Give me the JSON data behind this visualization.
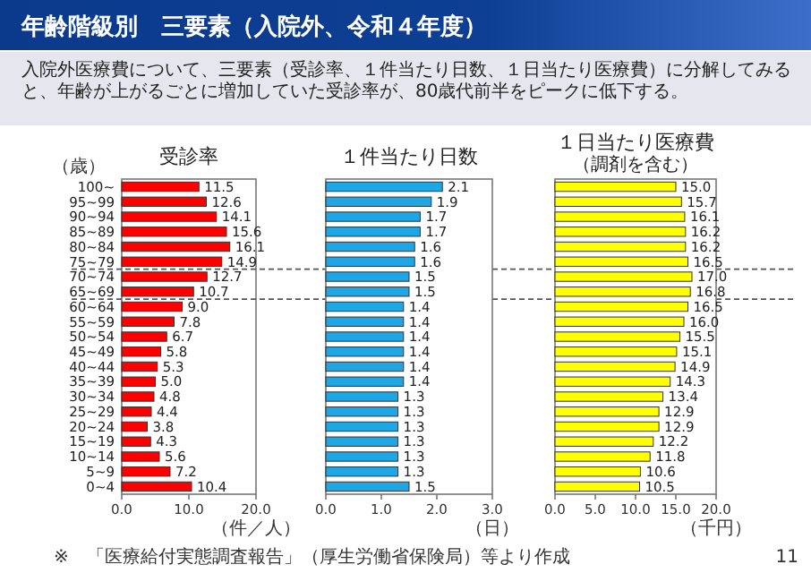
{
  "chart_data": [
    {
      "type": "other",
      "title": "年齢階級別　三要素（入院外、令和４年度）",
      "subtitle": "入院外医療費について、三要素（受診率、１件当たり日数、１日当たり医療費）に分解してみると、年齢が上がるごとに増加していた受診率が、80歳代前半をピークに低下する。",
      "annotations": [
        "※　「医療給付実態調査報告」（厚生労働省保険局）等より作成",
        "11"
      ]
    },
    {
      "type": "bar",
      "orientation": "horizontal",
      "title": "受診率",
      "ylabel": "（歳）",
      "xlabel": "（件／人）",
      "categories": [
        "100~",
        "95~99",
        "90~94",
        "85~89",
        "80~84",
        "75~79",
        "70~74",
        "65~69",
        "60~64",
        "55~59",
        "50~54",
        "45~49",
        "40~44",
        "35~39",
        "30~34",
        "25~29",
        "20~24",
        "15~19",
        "10~14",
        "5~9",
        "0~4"
      ],
      "values": [
        11.5,
        12.6,
        14.1,
        15.6,
        16.1,
        14.9,
        12.7,
        10.7,
        9.0,
        7.8,
        6.7,
        5.8,
        5.3,
        5.0,
        4.8,
        4.4,
        3.8,
        4.3,
        5.6,
        7.2,
        10.4
      ],
      "color": "#ff0000",
      "value_labels": [
        "11.5",
        "12.6",
        "14.1",
        "15.6",
        "16.1",
        "14.9",
        "12.7",
        "10.7",
        "9.0",
        "7.8",
        "6.7",
        "5.8",
        "5.3",
        "5.0",
        "4.8",
        "4.4",
        "3.8",
        "4.3",
        "5.6",
        "7.2",
        "10.4"
      ],
      "xlim": [
        0,
        20
      ],
      "xticks": [
        {
          "value": 0,
          "label": "0.0"
        },
        {
          "value": 10,
          "label": "10.0"
        },
        {
          "value": 20,
          "label": "20.0"
        }
      ],
      "ref_lines": [
        {
          "axis": "y",
          "value": "75~79",
          "line_style": "dashed"
        },
        {
          "axis": "y",
          "value": "65~69",
          "line_style": "dashed"
        }
      ]
    },
    {
      "type": "bar",
      "orientation": "horizontal",
      "title": "１件当たり日数",
      "xlabel": "（日）",
      "categories": [
        null,
        null,
        null,
        null,
        null,
        null,
        null,
        null,
        null,
        null,
        null,
        null,
        null,
        null,
        null,
        null,
        null,
        null,
        null,
        null,
        null
      ],
      "values": [
        2.1,
        1.9,
        1.7,
        1.7,
        1.6,
        1.6,
        1.5,
        1.5,
        1.4,
        1.4,
        1.4,
        1.4,
        1.4,
        1.4,
        1.3,
        1.3,
        1.3,
        1.3,
        1.3,
        1.3,
        1.5
      ],
      "color": "#1ea7e6",
      "xlim": [
        0,
        3
      ],
      "xticks": [
        {
          "value": 0,
          "label": "0.0"
        },
        {
          "value": 1,
          "label": "1.0"
        },
        {
          "value": 2,
          "label": "2.0"
        },
        {
          "value": 3,
          "label": "3.0"
        }
      ],
      "data_labels": true,
      "tick_labels": "x"
    },
    {
      "type": "bar",
      "orientation": "horizontal",
      "title": "１日当たり医療費",
      "subtitle": "（調剤を含む）",
      "xlabel": "（千円）",
      "categories": [
        null,
        null,
        null,
        null,
        null,
        null,
        null,
        null,
        null,
        null,
        null,
        null,
        null,
        null,
        null,
        null,
        null,
        null,
        null,
        null,
        null
      ],
      "values": [
        15.0,
        15.7,
        16.1,
        16.2,
        16.2,
        16.5,
        17.0,
        16.8,
        16.5,
        16.0,
        15.5,
        15.1,
        14.9,
        14.3,
        13.4,
        12.9,
        12.9,
        12.2,
        11.8,
        10.6,
        10.5
      ],
      "color": "#ffff00",
      "value_labels": [
        "15.0",
        "15.7",
        "16.1",
        "16.2",
        "16.2",
        "16.5",
        "17.0",
        "16.8",
        "16.5",
        "16.0",
        "15.5",
        "15.1",
        "14.9",
        "14.3",
        "13.4",
        "12.9",
        "12.9",
        "12.2",
        "11.8",
        "10.6",
        "10.5"
      ],
      "xlim": [
        0,
        20
      ],
      "xticks": [
        {
          "value": 0,
          "label": "0.0"
        },
        {
          "value": 5,
          "label": "5.0"
        },
        {
          "value": 10,
          "label": "10.0"
        },
        {
          "value": 15,
          "label": "15.0"
        },
        {
          "value": 20,
          "label": "20.0"
        }
      ],
      "tick_labels": "x"
    }
  ]
}
